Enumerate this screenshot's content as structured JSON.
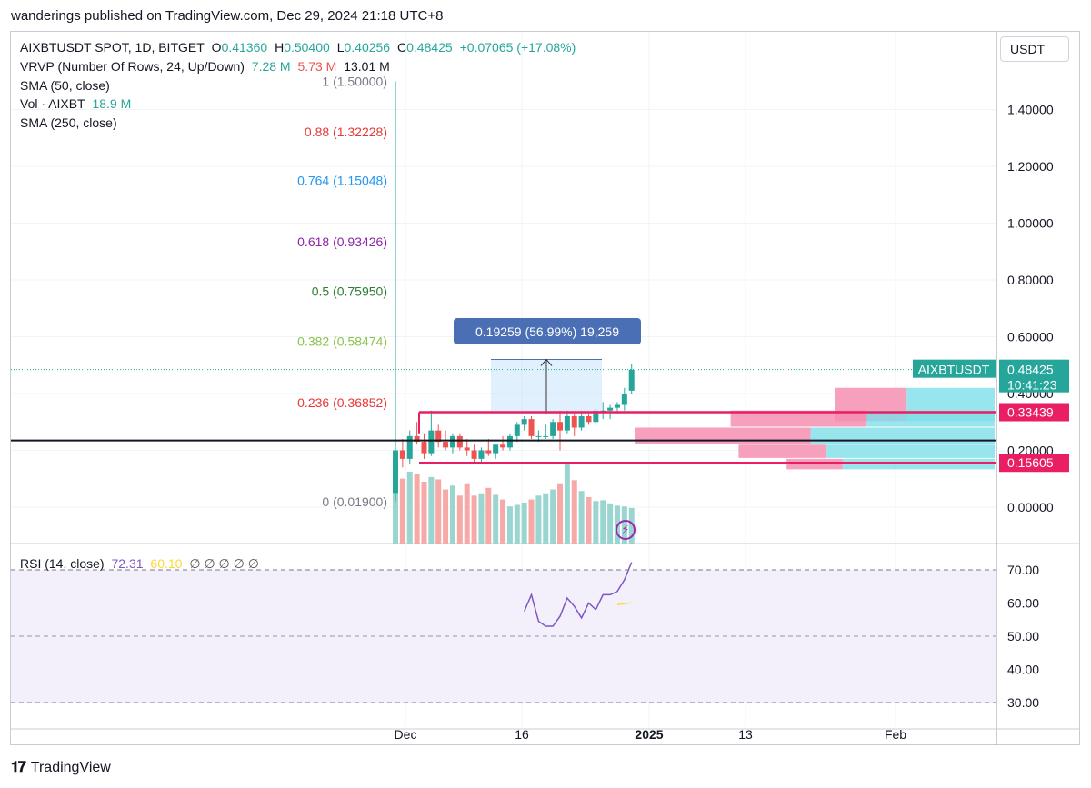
{
  "header": {
    "published": "wanderings published on TradingView.com, Dec 29, 2024 21:18 UTC+8"
  },
  "legend": {
    "symbol": "AIXBTUSDT SPOT, 1D, BITGET",
    "o_label": "O",
    "o": "0.41360",
    "h_label": "H",
    "h": "0.50400",
    "l_label": "L",
    "l": "0.40256",
    "c_label": "C",
    "c": "0.48425",
    "change": "+0.07065 (+17.08%)",
    "vrvp_label": "VRVP (Number Of Rows, 24, Up/Down)",
    "vrvp_up": "7.28 M",
    "vrvp_down": "5.73 M",
    "vrvp_total": "13.01 M",
    "sma50": "SMA (50, close)",
    "vol_label": "Vol · AIXBT",
    "vol_value": "18.9 M",
    "sma250": "SMA (250, close)",
    "rsi_label": "RSI (14, close)",
    "rsi_value": "72.31",
    "rsi_ma": "60.10",
    "rsi_extra": "∅ ∅ ∅ ∅ ∅"
  },
  "currency": "USDT",
  "colors": {
    "up": "#26a69a",
    "down": "#ef5350",
    "magenta": "#e91e63",
    "rsi": "#7e57c2",
    "rsi_ma": "#fdd835",
    "measure": "#4a6fb5"
  },
  "chart_data": {
    "type": "candlestick",
    "y_ticks": [
      "1.40000",
      "1.20000",
      "1.00000",
      "0.80000",
      "0.60000",
      "0.40000",
      "0.20000",
      "0.00000"
    ],
    "x_ticks": [
      "Dec",
      "16",
      "2025",
      "13",
      "Feb"
    ],
    "fib_levels": [
      {
        "label": "1 (1.50000)",
        "value": 1.5,
        "color": "#787b86"
      },
      {
        "label": "0.88 (1.32228)",
        "value": 1.32228,
        "color": "#e53935"
      },
      {
        "label": "0.764 (1.15048)",
        "value": 1.15048,
        "color": "#2196f3"
      },
      {
        "label": "0.618 (0.93426)",
        "value": 0.93426,
        "color": "#8e24aa"
      },
      {
        "label": "0.5 (0.75950)",
        "value": 0.7595,
        "color": "#2e7d32"
      },
      {
        "label": "0.382 (0.58474)",
        "value": 0.58474,
        "color": "#8bc34a"
      },
      {
        "label": "0.236 (0.36852)",
        "value": 0.36852,
        "color": "#e53935"
      },
      {
        "label": "0 (0.01900)",
        "value": 0.019,
        "color": "#787b86"
      }
    ],
    "price_tags": [
      {
        "name": "AIXBTUSDT",
        "value": 0.48425,
        "line2": "10:41:23",
        "text": "0.48425",
        "color": "#26a69a"
      },
      {
        "value": 0.33439,
        "text": "0.33439",
        "color": "#e91e63"
      },
      {
        "value": 0.15605,
        "text": "0.15605",
        "color": "#e91e63"
      }
    ],
    "measure_label": "0.19259 (56.99%) 19,259",
    "black_line": 0.235,
    "candles": [
      [
        0.05,
        1.5,
        0.02,
        0.2
      ],
      [
        0.2,
        0.24,
        0.14,
        0.17
      ],
      [
        0.17,
        0.27,
        0.15,
        0.25
      ],
      [
        0.25,
        0.3,
        0.22,
        0.23
      ],
      [
        0.23,
        0.26,
        0.17,
        0.19
      ],
      [
        0.19,
        0.34,
        0.18,
        0.27
      ],
      [
        0.27,
        0.29,
        0.21,
        0.23
      ],
      [
        0.23,
        0.27,
        0.2,
        0.21
      ],
      [
        0.21,
        0.26,
        0.19,
        0.25
      ],
      [
        0.25,
        0.26,
        0.2,
        0.21
      ],
      [
        0.21,
        0.24,
        0.18,
        0.2
      ],
      [
        0.2,
        0.22,
        0.16,
        0.17
      ],
      [
        0.17,
        0.21,
        0.16,
        0.2
      ],
      [
        0.2,
        0.24,
        0.18,
        0.19
      ],
      [
        0.19,
        0.22,
        0.17,
        0.22
      ],
      [
        0.22,
        0.25,
        0.2,
        0.21
      ],
      [
        0.21,
        0.26,
        0.2,
        0.25
      ],
      [
        0.25,
        0.3,
        0.23,
        0.29
      ],
      [
        0.29,
        0.32,
        0.27,
        0.31
      ],
      [
        0.31,
        0.32,
        0.24,
        0.25
      ],
      [
        0.25,
        0.27,
        0.23,
        0.25
      ],
      [
        0.25,
        0.29,
        0.24,
        0.25
      ],
      [
        0.25,
        0.31,
        0.24,
        0.3
      ],
      [
        0.3,
        0.34,
        0.2,
        0.27
      ],
      [
        0.27,
        0.34,
        0.26,
        0.32
      ],
      [
        0.32,
        0.33,
        0.25,
        0.28
      ],
      [
        0.28,
        0.34,
        0.27,
        0.32
      ],
      [
        0.32,
        0.33,
        0.29,
        0.3
      ],
      [
        0.3,
        0.35,
        0.29,
        0.34
      ],
      [
        0.34,
        0.37,
        0.31,
        0.34
      ],
      [
        0.34,
        0.36,
        0.31,
        0.35
      ],
      [
        0.35,
        0.37,
        0.33,
        0.36
      ],
      [
        0.36,
        0.42,
        0.34,
        0.4
      ],
      [
        0.41,
        0.504,
        0.4,
        0.484
      ]
    ],
    "volumes": [
      0.78,
      0.84,
      0.93,
      0.9,
      0.8,
      0.86,
      0.83,
      0.7,
      0.75,
      0.62,
      0.78,
      0.62,
      0.65,
      0.72,
      0.63,
      0.57,
      0.48,
      0.5,
      0.53,
      0.57,
      0.62,
      0.65,
      0.7,
      0.78,
      1.05,
      0.82,
      0.68,
      0.6,
      0.55,
      0.56,
      0.52,
      0.49,
      0.48,
      0.46
    ],
    "vrvp_rows": [
      {
        "y1": 0.42,
        "y2": 0.3,
        "up": 0.11,
        "down": 0.09
      },
      {
        "y1": 0.34,
        "y2": 0.28,
        "up": 0.16,
        "down": 0.17
      },
      {
        "y1": 0.28,
        "y2": 0.22,
        "up": 0.23,
        "down": 0.22
      },
      {
        "y1": 0.22,
        "y2": 0.17,
        "up": 0.21,
        "down": 0.11
      },
      {
        "y1": 0.17,
        "y2": 0.13,
        "up": 0.19,
        "down": 0.07
      }
    ],
    "rsi": {
      "ticks": [
        "70.00",
        "60.00",
        "50.00",
        "40.00",
        "30.00"
      ],
      "values": [
        57.5,
        62.5,
        54.5,
        53,
        53,
        56,
        61.5,
        59,
        55.5,
        60,
        58,
        62.5,
        62.5,
        63.5,
        67,
        72.3
      ],
      "ma": [
        59.5,
        60.1
      ],
      "upper": 70,
      "lower": 30,
      "mid": 50
    }
  }
}
